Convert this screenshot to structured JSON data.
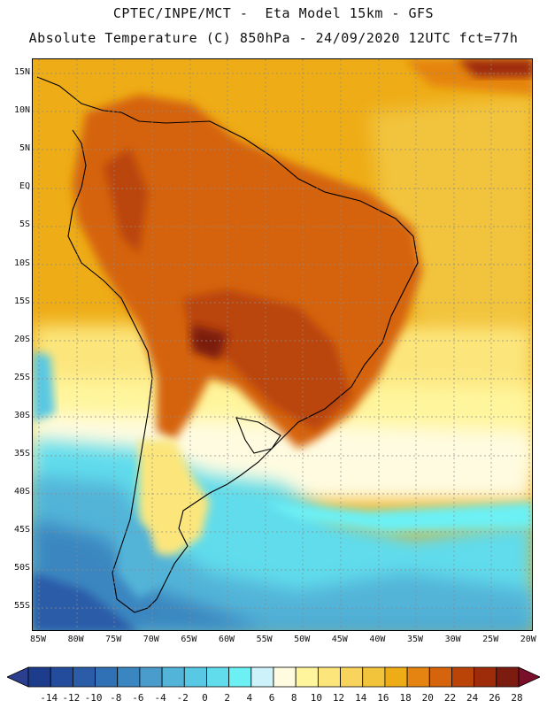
{
  "title": {
    "line1": "CPTEC/INPE/MCT -  Eta Model 15km - GFS",
    "line2": "Absolute Temperature (C) 850hPa - 24/09/2020 12UTC fct=77h"
  },
  "map": {
    "lat_labels": [
      "15N",
      "10N",
      "5N",
      "EQ",
      "5S",
      "10S",
      "15S",
      "20S",
      "25S",
      "30S",
      "35S",
      "40S",
      "45S",
      "50S",
      "55S"
    ],
    "lon_labels": [
      "85W",
      "80W",
      "75W",
      "70W",
      "65W",
      "60W",
      "55W",
      "50W",
      "45W",
      "40W",
      "35W",
      "30W",
      "25W",
      "20W"
    ],
    "grid_color": "#8a8a8a"
  },
  "colorbar": {
    "labels": [
      "-14",
      "-12",
      "-10",
      "-8",
      "-6",
      "-4",
      "-2",
      "0",
      "2",
      "4",
      "6",
      "8",
      "10",
      "12",
      "14",
      "16",
      "18",
      "20",
      "22",
      "24",
      "26",
      "28"
    ],
    "colors": [
      "#1e3c8c",
      "#234c9c",
      "#2a5ca8",
      "#3070b4",
      "#3a86c0",
      "#4a9ccc",
      "#52b4d8",
      "#58c8e4",
      "#60dcec",
      "#6cf0f4",
      "#cdf2fa",
      "#fffbe0",
      "#fff59c",
      "#fce67c",
      "#f8d45c",
      "#f2c43c",
      "#eeac16",
      "#e58410",
      "#d5640c",
      "#ba4408",
      "#9e2c0a",
      "#7c1c10"
    ],
    "under_color": "#2c3e8e",
    "over_color": "#7a0f2a"
  }
}
